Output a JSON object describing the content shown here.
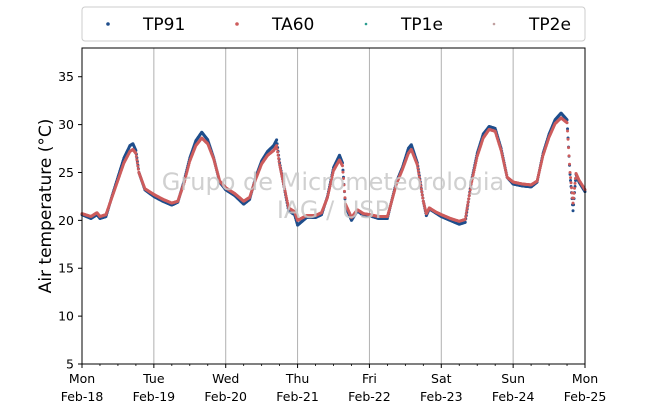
{
  "chart_data": {
    "type": "scatter",
    "ylabel": "Air temperature (°C)",
    "ylim": [
      5,
      38
    ],
    "yticks": [
      5,
      10,
      15,
      20,
      25,
      30,
      35
    ],
    "xlim_days": [
      0,
      7
    ],
    "xticks": [
      {
        "day": "Mon",
        "date": "Feb-18"
      },
      {
        "day": "Tue",
        "date": "Feb-19"
      },
      {
        "day": "Wed",
        "date": "Feb-20"
      },
      {
        "day": "Thu",
        "date": "Feb-21"
      },
      {
        "day": "Fri",
        "date": "Feb-22"
      },
      {
        "day": "Sat",
        "date": "Feb-23"
      },
      {
        "day": "Sun",
        "date": "Feb-24"
      },
      {
        "day": "Mon",
        "date": "Feb-25"
      }
    ],
    "grid": "vertical at day boundaries",
    "legend_position": "top, outside plot, single row",
    "watermark": [
      "Grupo de Micrometeorologia",
      "IAG / USP"
    ],
    "series": [
      {
        "name": "TP91",
        "color": "#1f4e8c",
        "marker": "dot",
        "points": [
          [
            "Feb-18 00:00",
            20.6
          ],
          [
            "Feb-18 03:00",
            20.2
          ],
          [
            "Feb-18 05:00",
            20.6
          ],
          [
            "Feb-18 06:00",
            20.2
          ],
          [
            "Feb-18 08:00",
            20.4
          ],
          [
            "Feb-18 10:00",
            22.5
          ],
          [
            "Feb-18 12:00",
            24.5
          ],
          [
            "Feb-18 14:00",
            26.5
          ],
          [
            "Feb-18 16:00",
            27.8
          ],
          [
            "Feb-18 17:00",
            28.0
          ],
          [
            "Feb-18 18:00",
            27.3
          ],
          [
            "Feb-18 19:00",
            25.0
          ],
          [
            "Feb-18 21:00",
            23.2
          ],
          [
            "Feb-19 00:00",
            22.5
          ],
          [
            "Feb-19 03:00",
            22.0
          ],
          [
            "Feb-19 06:00",
            21.6
          ],
          [
            "Feb-19 08:00",
            21.9
          ],
          [
            "Feb-19 10:00",
            24.0
          ],
          [
            "Feb-19 12:00",
            26.5
          ],
          [
            "Feb-19 14:00",
            28.3
          ],
          [
            "Feb-19 16:00",
            29.2
          ],
          [
            "Feb-19 18:00",
            28.4
          ],
          [
            "Feb-19 20:00",
            26.5
          ],
          [
            "Feb-19 22:00",
            24.0
          ],
          [
            "Feb-20 00:00",
            23.2
          ],
          [
            "Feb-20 03:00",
            22.6
          ],
          [
            "Feb-20 06:00",
            21.7
          ],
          [
            "Feb-20 08:00",
            22.2
          ],
          [
            "Feb-20 10:00",
            24.5
          ],
          [
            "Feb-20 12:00",
            26.2
          ],
          [
            "Feb-20 14:00",
            27.2
          ],
          [
            "Feb-20 16:00",
            27.8
          ],
          [
            "Feb-20 17:00",
            28.4
          ],
          [
            "Feb-20 18:00",
            26.0
          ],
          [
            "Feb-20 21:00",
            21.0
          ],
          [
            "Feb-20 23:00",
            20.6
          ],
          [
            "Feb-21 00:00",
            19.5
          ],
          [
            "Feb-21 03:00",
            20.3
          ],
          [
            "Feb-21 06:00",
            20.3
          ],
          [
            "Feb-21 08:00",
            20.6
          ],
          [
            "Feb-21 10:00",
            22.5
          ],
          [
            "Feb-21 12:00",
            25.5
          ],
          [
            "Feb-21 14:00",
            26.8
          ],
          [
            "Feb-21 15:00",
            26.0
          ],
          [
            "Feb-21 16:00",
            21.5
          ],
          [
            "Feb-21 18:00",
            20.0
          ],
          [
            "Feb-21 20:00",
            21.0
          ],
          [
            "Feb-21 22:00",
            20.5
          ],
          [
            "Feb-22 00:00",
            20.5
          ],
          [
            "Feb-22 03:00",
            20.2
          ],
          [
            "Feb-22 06:00",
            20.2
          ],
          [
            "Feb-22 07:00",
            21.5
          ],
          [
            "Feb-22 09:00",
            24.0
          ],
          [
            "Feb-22 11:00",
            25.5
          ],
          [
            "Feb-22 13:00",
            27.5
          ],
          [
            "Feb-22 14:00",
            27.9
          ],
          [
            "Feb-22 16:00",
            26.0
          ],
          [
            "Feb-22 18:00",
            22.0
          ],
          [
            "Feb-22 19:00",
            20.5
          ],
          [
            "Feb-22 20:00",
            21.2
          ],
          [
            "Feb-22 22:00",
            20.8
          ],
          [
            "Feb-23 00:00",
            20.4
          ],
          [
            "Feb-23 03:00",
            20.0
          ],
          [
            "Feb-23 06:00",
            19.6
          ],
          [
            "Feb-23 08:00",
            19.8
          ],
          [
            "Feb-23 10:00",
            24.0
          ],
          [
            "Feb-23 12:00",
            27.0
          ],
          [
            "Feb-23 14:00",
            29.0
          ],
          [
            "Feb-23 16:00",
            29.8
          ],
          [
            "Feb-23 18:00",
            29.6
          ],
          [
            "Feb-23 20:00",
            27.5
          ],
          [
            "Feb-23 22:00",
            24.5
          ],
          [
            "Feb-24 00:00",
            23.8
          ],
          [
            "Feb-24 03:00",
            23.6
          ],
          [
            "Feb-24 06:00",
            23.5
          ],
          [
            "Feb-24 08:00",
            24.0
          ],
          [
            "Feb-24 10:00",
            27.0
          ],
          [
            "Feb-24 12:00",
            29.0
          ],
          [
            "Feb-24 14:00",
            30.5
          ],
          [
            "Feb-24 16:00",
            31.2
          ],
          [
            "Feb-24 18:00",
            30.5
          ],
          [
            "Feb-24 19:00",
            24.8
          ],
          [
            "Feb-24 20:00",
            21.0
          ],
          [
            "Feb-24 21:00",
            24.8
          ],
          [
            "Feb-24 22:00",
            24.0
          ],
          [
            "Feb-25 00:00",
            23.0
          ]
        ]
      },
      {
        "name": "TA60",
        "color": "#cd5c5c",
        "marker": "dot",
        "points": [
          [
            "Feb-18 00:00",
            20.7
          ],
          [
            "Feb-18 03:00",
            20.4
          ],
          [
            "Feb-18 05:00",
            20.8
          ],
          [
            "Feb-18 06:00",
            20.4
          ],
          [
            "Feb-18 08:00",
            20.6
          ],
          [
            "Feb-18 10:00",
            22.4
          ],
          [
            "Feb-18 12:00",
            24.2
          ],
          [
            "Feb-18 14:00",
            26.0
          ],
          [
            "Feb-18 16:00",
            27.2
          ],
          [
            "Feb-18 17:00",
            27.4
          ],
          [
            "Feb-18 18:00",
            27.0
          ],
          [
            "Feb-18 19:00",
            25.0
          ],
          [
            "Feb-18 21:00",
            23.3
          ],
          [
            "Feb-19 00:00",
            22.7
          ],
          [
            "Feb-19 03:00",
            22.2
          ],
          [
            "Feb-19 06:00",
            21.8
          ],
          [
            "Feb-19 08:00",
            22.0
          ],
          [
            "Feb-19 10:00",
            23.8
          ],
          [
            "Feb-19 12:00",
            26.2
          ],
          [
            "Feb-19 14:00",
            27.8
          ],
          [
            "Feb-19 16:00",
            28.6
          ],
          [
            "Feb-19 18:00",
            28.0
          ],
          [
            "Feb-19 20:00",
            26.4
          ],
          [
            "Feb-19 22:00",
            24.1
          ],
          [
            "Feb-20 00:00",
            23.4
          ],
          [
            "Feb-20 03:00",
            22.8
          ],
          [
            "Feb-20 06:00",
            22.0
          ],
          [
            "Feb-20 08:00",
            22.4
          ],
          [
            "Feb-20 10:00",
            24.3
          ],
          [
            "Feb-20 12:00",
            25.9
          ],
          [
            "Feb-20 14:00",
            26.8
          ],
          [
            "Feb-20 16:00",
            27.3
          ],
          [
            "Feb-20 17:00",
            27.8
          ],
          [
            "Feb-20 18:00",
            25.8
          ],
          [
            "Feb-20 21:00",
            21.3
          ],
          [
            "Feb-20 23:00",
            20.9
          ],
          [
            "Feb-21 00:00",
            20.0
          ],
          [
            "Feb-21 03:00",
            20.5
          ],
          [
            "Feb-21 06:00",
            20.5
          ],
          [
            "Feb-21 08:00",
            20.8
          ],
          [
            "Feb-21 10:00",
            22.4
          ],
          [
            "Feb-21 12:00",
            25.2
          ],
          [
            "Feb-21 14:00",
            26.3
          ],
          [
            "Feb-21 15:00",
            25.7
          ],
          [
            "Feb-21 16:00",
            21.7
          ],
          [
            "Feb-21 18:00",
            20.3
          ],
          [
            "Feb-21 20:00",
            21.1
          ],
          [
            "Feb-21 22:00",
            20.7
          ],
          [
            "Feb-22 00:00",
            20.6
          ],
          [
            "Feb-22 03:00",
            20.4
          ],
          [
            "Feb-22 06:00",
            20.4
          ],
          [
            "Feb-22 07:00",
            21.5
          ],
          [
            "Feb-22 09:00",
            23.8
          ],
          [
            "Feb-22 11:00",
            25.3
          ],
          [
            "Feb-22 13:00",
            27.0
          ],
          [
            "Feb-22 14:00",
            27.4
          ],
          [
            "Feb-22 16:00",
            25.8
          ],
          [
            "Feb-22 18:00",
            22.0
          ],
          [
            "Feb-22 19:00",
            20.7
          ],
          [
            "Feb-22 20:00",
            21.3
          ],
          [
            "Feb-22 22:00",
            20.9
          ],
          [
            "Feb-23 00:00",
            20.6
          ],
          [
            "Feb-23 03:00",
            20.2
          ],
          [
            "Feb-23 06:00",
            19.9
          ],
          [
            "Feb-23 08:00",
            20.1
          ],
          [
            "Feb-23 10:00",
            23.8
          ],
          [
            "Feb-23 12:00",
            26.7
          ],
          [
            "Feb-23 14:00",
            28.6
          ],
          [
            "Feb-23 16:00",
            29.5
          ],
          [
            "Feb-23 18:00",
            29.3
          ],
          [
            "Feb-23 20:00",
            27.3
          ],
          [
            "Feb-23 22:00",
            24.5
          ],
          [
            "Feb-24 00:00",
            24.0
          ],
          [
            "Feb-24 03:00",
            23.8
          ],
          [
            "Feb-24 06:00",
            23.7
          ],
          [
            "Feb-24 08:00",
            24.1
          ],
          [
            "Feb-24 10:00",
            26.8
          ],
          [
            "Feb-24 12:00",
            28.7
          ],
          [
            "Feb-24 14:00",
            30.1
          ],
          [
            "Feb-24 16:00",
            30.7
          ],
          [
            "Feb-24 18:00",
            30.2
          ],
          [
            "Feb-24 19:00",
            25.0
          ],
          [
            "Feb-24 20:00",
            21.8
          ],
          [
            "Feb-24 21:00",
            24.9
          ],
          [
            "Feb-24 22:00",
            24.2
          ],
          [
            "Feb-25 00:00",
            23.2
          ]
        ]
      },
      {
        "name": "TP1e",
        "color": "#2a9d8f",
        "marker": "dot",
        "points": []
      },
      {
        "name": "TP2e",
        "color": "#c0a0a0",
        "marker": "dot",
        "points": []
      }
    ]
  }
}
